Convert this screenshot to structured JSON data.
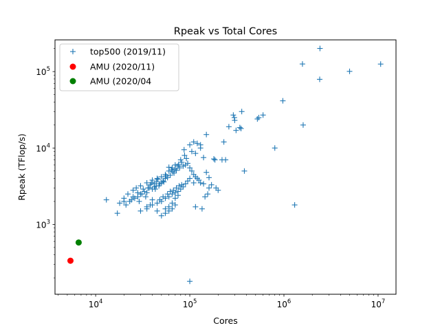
{
  "chart_data": {
    "type": "scatter",
    "title": "Rpeak vs Total Cores",
    "xlabel": "Cores",
    "ylabel": "Rpeak (TFlop/s)",
    "xscale": "log",
    "yscale": "log",
    "xlim": [
      3700,
      15500000
    ],
    "ylim": [
      122,
      260000
    ],
    "x_ticks": [
      {
        "value": 10000,
        "base": "10",
        "exp": "4"
      },
      {
        "value": 100000,
        "base": "10",
        "exp": "5"
      },
      {
        "value": 1000000,
        "base": "10",
        "exp": "6"
      },
      {
        "value": 10000000,
        "base": "10",
        "exp": "7"
      }
    ],
    "y_ticks": [
      {
        "value": 1000,
        "base": "10",
        "exp": "3"
      },
      {
        "value": 10000,
        "base": "10",
        "exp": "4"
      },
      {
        "value": 100000,
        "base": "10",
        "exp": "5"
      }
    ],
    "grid": false,
    "legend_placement": "upper-left",
    "series": [
      {
        "name": "top500 (2019/11)",
        "marker": "plus",
        "color": "#1f77b4",
        "points": [
          [
            2414592,
            200795
          ],
          [
            1572480,
            125712
          ],
          [
            10649600,
            125436
          ],
          [
            4981760,
            100679
          ],
          [
            2397824,
            79215
          ],
          [
            973600,
            41461
          ],
          [
            356352,
            30000
          ],
          [
            297600,
            25000
          ],
          [
            290000,
            27000
          ],
          [
            540000,
            25000
          ],
          [
            522240,
            24000
          ],
          [
            600000,
            27000
          ],
          [
            300000,
            23000
          ],
          [
            260000,
            19000
          ],
          [
            340000,
            18500
          ],
          [
            350000,
            18000
          ],
          [
            310000,
            17000
          ],
          [
            1600000,
            20000
          ],
          [
            150000,
            15000
          ],
          [
            800000,
            10000
          ],
          [
            230000,
            12000
          ],
          [
            130000,
            10000
          ],
          [
            130000,
            11000
          ],
          [
            105000,
            9000
          ],
          [
            110000,
            12000
          ],
          [
            120000,
            11500
          ],
          [
            100000,
            11000
          ],
          [
            87000,
            9500
          ],
          [
            115000,
            8500
          ],
          [
            140000,
            7500
          ],
          [
            180000,
            7200
          ],
          [
            185000,
            7000
          ],
          [
            220000,
            7000
          ],
          [
            240000,
            7000
          ],
          [
            380000,
            5000
          ],
          [
            88000,
            8000
          ],
          [
            80000,
            7000
          ],
          [
            70000,
            6000
          ],
          [
            75000,
            5800
          ],
          [
            65000,
            5500
          ],
          [
            60000,
            5000
          ],
          [
            55000,
            4500
          ],
          [
            50000,
            4200
          ],
          [
            45000,
            4000
          ],
          [
            40000,
            3800
          ],
          [
            35000,
            3500
          ],
          [
            30000,
            3200
          ],
          [
            27000,
            3000
          ],
          [
            25000,
            2800
          ],
          [
            22000,
            2500
          ],
          [
            20000,
            2200
          ],
          [
            18000,
            1900
          ],
          [
            30000,
            2500
          ],
          [
            28000,
            2300
          ],
          [
            26000,
            2200
          ],
          [
            24000,
            2100
          ],
          [
            35000,
            2600
          ],
          [
            40000,
            2900
          ],
          [
            42000,
            3100
          ],
          [
            48000,
            3400
          ],
          [
            52000,
            3700
          ],
          [
            58000,
            4100
          ],
          [
            62000,
            4400
          ],
          [
            68000,
            4700
          ],
          [
            72000,
            5100
          ],
          [
            78000,
            5500
          ],
          [
            36000,
            3000
          ],
          [
            33000,
            2700
          ],
          [
            38000,
            3300
          ],
          [
            44000,
            3600
          ],
          [
            46000,
            3900
          ],
          [
            55000,
            4000
          ],
          [
            50000,
            3500
          ],
          [
            44000,
            3200
          ],
          [
            42000,
            3400
          ],
          [
            60000,
            5600
          ],
          [
            64000,
            5200
          ],
          [
            76000,
            6100
          ],
          [
            82000,
            6500
          ],
          [
            92000,
            7300
          ],
          [
            25000,
            2300
          ],
          [
            23000,
            2000
          ],
          [
            21000,
            1800
          ],
          [
            20000,
            2000
          ],
          [
            17000,
            1400
          ],
          [
            13000,
            2100
          ],
          [
            28000,
            2600
          ],
          [
            32000,
            2900
          ],
          [
            37000,
            3000
          ],
          [
            39000,
            3500
          ],
          [
            31000,
            2500
          ],
          [
            34000,
            2300
          ],
          [
            29000,
            2000
          ],
          [
            43000,
            2900
          ],
          [
            47000,
            3200
          ],
          [
            53000,
            3600
          ],
          [
            56000,
            4300
          ],
          [
            66000,
            4900
          ],
          [
            70000,
            5300
          ],
          [
            85000,
            5800
          ],
          [
            90000,
            6000
          ],
          [
            95000,
            6300
          ],
          [
            100000,
            5500
          ],
          [
            105000,
            5000
          ],
          [
            110000,
            4500
          ],
          [
            115000,
            4200
          ],
          [
            120000,
            4000
          ],
          [
            125000,
            3800
          ],
          [
            130000,
            3500
          ],
          [
            140000,
            3400
          ],
          [
            150000,
            4800
          ],
          [
            160000,
            4100
          ],
          [
            170000,
            3300
          ],
          [
            190000,
            3000
          ],
          [
            200000,
            2800
          ],
          [
            100000,
            4000
          ],
          [
            95000,
            3700
          ],
          [
            90000,
            3400
          ],
          [
            85000,
            3100
          ],
          [
            80000,
            2900
          ],
          [
            75000,
            2700
          ],
          [
            70000,
            2600
          ],
          [
            65000,
            2500
          ],
          [
            60000,
            2300
          ],
          [
            55000,
            2200
          ],
          [
            50000,
            2000
          ],
          [
            45000,
            1900
          ],
          [
            40000,
            1800
          ],
          [
            35000,
            1700
          ],
          [
            30000,
            1500
          ],
          [
            50000,
            1300
          ],
          [
            45000,
            1500
          ],
          [
            55000,
            1400
          ],
          [
            60000,
            1700
          ],
          [
            65000,
            1900
          ],
          [
            70000,
            2200
          ],
          [
            75000,
            2400
          ],
          [
            40000,
            2100
          ],
          [
            35000,
            1600
          ],
          [
            38000,
            1800
          ],
          [
            48000,
            2100
          ],
          [
            52000,
            2300
          ],
          [
            58000,
            2500
          ],
          [
            62000,
            2700
          ],
          [
            67000,
            2800
          ],
          [
            72000,
            3000
          ],
          [
            77000,
            3200
          ],
          [
            82000,
            3300
          ],
          [
            60000,
            1500
          ],
          [
            55000,
            1600
          ],
          [
            65000,
            1600
          ],
          [
            70000,
            1800
          ],
          [
            110000,
            3500
          ],
          [
            115000,
            1700
          ],
          [
            135000,
            1600
          ],
          [
            145000,
            2300
          ],
          [
            155000,
            2500
          ],
          [
            160000,
            3000
          ],
          [
            1300000,
            1800
          ],
          [
            100000,
            180
          ]
        ]
      },
      {
        "name": "AMU (2020/11)",
        "marker": "circle",
        "color": "#ff0000",
        "points": [
          [
            5400,
            335
          ]
        ]
      },
      {
        "name": "AMU (2020/04",
        "marker": "circle",
        "color": "#008000",
        "points": [
          [
            6600,
            580
          ]
        ]
      }
    ]
  }
}
